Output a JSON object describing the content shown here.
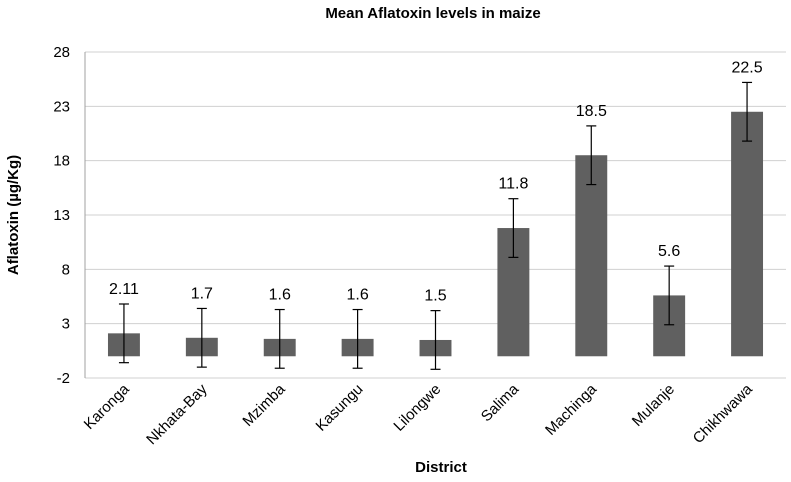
{
  "chart_data": {
    "type": "bar",
    "title": "Mean Aflatoxin levels in maize",
    "xlabel": "District",
    "ylabel": "Aflatoxin (µg/Kg)",
    "categories": [
      "Karonga",
      "Nkhata-Bay",
      "Mzimba",
      "Kasungu",
      "Lilongwe",
      "Salima",
      "Machinga",
      "Mulanje",
      "Chikhwawa"
    ],
    "values": [
      2.11,
      1.7,
      1.6,
      1.6,
      1.5,
      11.8,
      18.5,
      5.6,
      22.5
    ],
    "data_labels": [
      "2.11",
      "1.7",
      "1.6",
      "1.6",
      "1.5",
      "11.8",
      "18.5",
      "5.6",
      "22.5"
    ],
    "error": [
      2.7,
      2.7,
      2.7,
      2.7,
      2.7,
      2.7,
      2.7,
      2.7,
      2.7
    ],
    "ylim": [
      -2,
      28
    ],
    "yticks": [
      -2,
      3,
      8,
      13,
      18,
      23,
      28
    ],
    "ytick_labels": [
      "-2",
      "3",
      "8",
      "13",
      "18",
      "23",
      "28"
    ],
    "grid": true,
    "legend": "none",
    "bar_color": "#606060",
    "grid_color": "#d0d0d0"
  }
}
